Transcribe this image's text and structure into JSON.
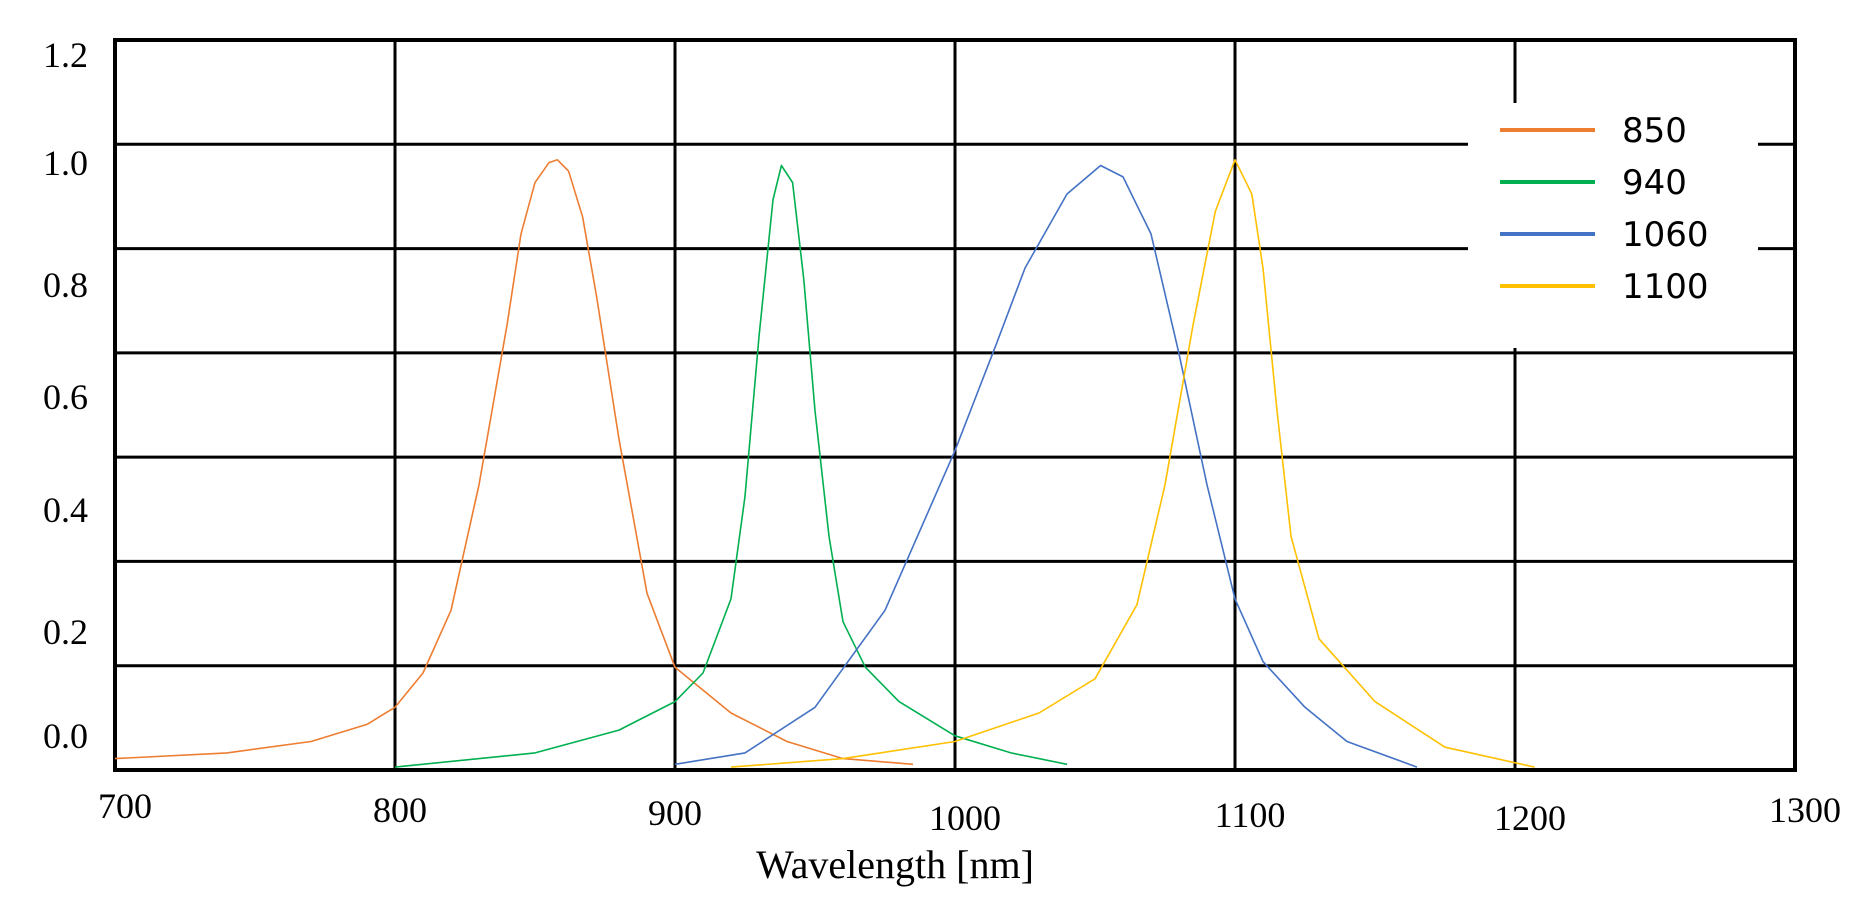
{
  "chart_data": {
    "type": "line",
    "title": "",
    "xlabel": "Wavelength [nm]",
    "ylabel": "",
    "xlim": [
      700,
      1300
    ],
    "ylim": [
      -0.08,
      1.2
    ],
    "x_ticks": [
      "700",
      "800",
      "900",
      "1000",
      "1100",
      "1200",
      "1300"
    ],
    "y_ticks": [
      "0.0",
      "0.2",
      "0.4",
      "0.6",
      "0.8",
      "1.0",
      "1.2"
    ],
    "grid": true,
    "legend_position": "top-right",
    "series": [
      {
        "name": "850",
        "color": "#ED7D31",
        "x": [
          700,
          740,
          770,
          790,
          800,
          810,
          820,
          830,
          840,
          845,
          850,
          855,
          858,
          862,
          867,
          872,
          880,
          890,
          900,
          920,
          940,
          960,
          985
        ],
        "y": [
          -0.06,
          -0.05,
          -0.03,
          0.0,
          0.03,
          0.09,
          0.2,
          0.42,
          0.7,
          0.86,
          0.95,
          0.985,
          0.99,
          0.97,
          0.89,
          0.75,
          0.5,
          0.23,
          0.1,
          0.02,
          -0.03,
          -0.06,
          -0.07
        ]
      },
      {
        "name": "940",
        "color": "#00B050",
        "x": [
          800,
          850,
          880,
          900,
          910,
          920,
          925,
          930,
          935,
          938,
          942,
          946,
          950,
          955,
          960,
          968,
          980,
          1000,
          1020,
          1040
        ],
        "y": [
          -0.075,
          -0.05,
          -0.01,
          0.04,
          0.09,
          0.22,
          0.4,
          0.68,
          0.92,
          0.98,
          0.95,
          0.78,
          0.55,
          0.33,
          0.18,
          0.1,
          0.04,
          -0.02,
          -0.05,
          -0.07
        ]
      },
      {
        "name": "1060",
        "color": "#4472C4",
        "x": [
          900,
          925,
          950,
          975,
          1000,
          1015,
          1025,
          1040,
          1052,
          1060,
          1070,
          1080,
          1090,
          1100,
          1110,
          1125,
          1140,
          1165
        ],
        "y": [
          -0.07,
          -0.05,
          0.03,
          0.2,
          0.48,
          0.67,
          0.8,
          0.93,
          0.98,
          0.96,
          0.86,
          0.65,
          0.42,
          0.22,
          0.11,
          0.03,
          -0.03,
          -0.075
        ]
      },
      {
        "name": "1100",
        "color": "#FFC000",
        "x": [
          920,
          960,
          1000,
          1030,
          1050,
          1065,
          1075,
          1085,
          1093,
          1100,
          1106,
          1110,
          1115,
          1120,
          1130,
          1150,
          1175,
          1207
        ],
        "y": [
          -0.075,
          -0.06,
          -0.03,
          0.02,
          0.08,
          0.21,
          0.42,
          0.7,
          0.9,
          0.99,
          0.93,
          0.8,
          0.55,
          0.33,
          0.15,
          0.04,
          -0.04,
          -0.075
        ]
      }
    ]
  }
}
